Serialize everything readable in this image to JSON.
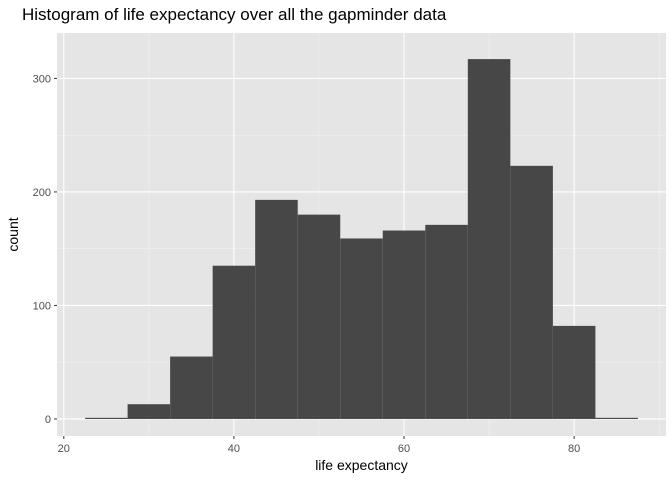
{
  "chart_data": {
    "type": "bar",
    "title": "Histogram of life expectancy over all the gapminder data",
    "xlabel": "life expectancy",
    "ylabel": "count",
    "xlim": [
      19.2,
      90.8
    ],
    "ylim": [
      -15,
      340
    ],
    "xticks": [
      20,
      40,
      60,
      80
    ],
    "yticks": [
      0,
      100,
      200,
      300
    ],
    "x_minor_ticks": [
      30,
      50,
      70,
      90
    ],
    "y_minor_ticks": [
      50,
      150,
      250
    ],
    "bin_width": 5,
    "bin_starts": [
      22.5,
      27.5,
      32.5,
      37.5,
      42.5,
      47.5,
      52.5,
      57.5,
      62.5,
      67.5,
      72.5,
      77.5,
      82.5
    ],
    "values": [
      1,
      13,
      55,
      135,
      193,
      180,
      159,
      166,
      171,
      317,
      223,
      82,
      1
    ],
    "grid": true,
    "legend": "none",
    "colors": {
      "panel": "#e5e5e5",
      "grid_major": "#ffffff",
      "grid_minor": "#f2f2f2",
      "bar": "#474747",
      "tick": "#4d4d4d"
    }
  }
}
